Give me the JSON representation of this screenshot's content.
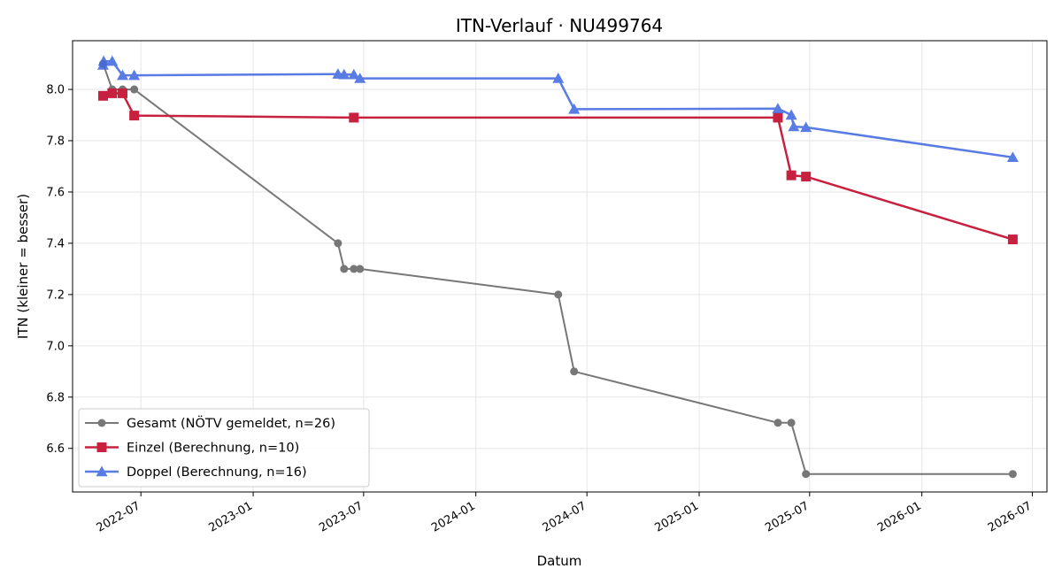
{
  "chart_data": {
    "type": "line",
    "title": "ITN-Verlauf · NU499764",
    "xlabel": "Datum",
    "ylabel": "ITN  (kleiner = besser)",
    "x_ticks": [
      "2022-07",
      "2023-01",
      "2023-07",
      "2024-01",
      "2024-07",
      "2025-01",
      "2025-07",
      "2026-01",
      "2026-07"
    ],
    "y_ticks": [
      "6.6",
      "6.8",
      "7.0",
      "7.2",
      "7.4",
      "7.6",
      "7.8",
      "8.0"
    ],
    "xlim": [
      "2022-03-11",
      "2026-07-25"
    ],
    "ylim": [
      6.43,
      8.19
    ],
    "grid": true,
    "legend_position": "lower-left",
    "series": [
      {
        "name": "Gesamt (NÖTV gemeldet, n=26)",
        "color": "#444444",
        "marker": "circle",
        "x": [
          "2022-04-30",
          "2022-05-15",
          "2022-06-01",
          "2022-06-20",
          "2023-05-20",
          "2023-05-30",
          "2023-06-15",
          "2023-06-25",
          "2024-05-15",
          "2024-06-10",
          "2025-05-10",
          "2025-06-01",
          "2025-06-25",
          "2026-05-30"
        ],
        "y": [
          8.1,
          8.0,
          8.0,
          8.0,
          7.4,
          7.3,
          7.3,
          7.3,
          7.2,
          6.9,
          6.7,
          6.7,
          6.5,
          6.5
        ]
      },
      {
        "name": "Einzel (Berechnung, n=10)",
        "color": "#c8203f",
        "marker": "square",
        "x": [
          "2022-04-30",
          "2022-05-15",
          "2022-06-01",
          "2022-06-20",
          "2023-06-15",
          "2025-05-10",
          "2025-06-01",
          "2025-06-25",
          "2026-05-30"
        ],
        "y": [
          7.975,
          7.985,
          7.985,
          7.898,
          7.89,
          7.89,
          7.665,
          7.66,
          7.415
        ]
      },
      {
        "name": "Doppel (Berechnung, n=16)",
        "color": "#4169e1",
        "marker": "triangle",
        "x": [
          "2022-04-30",
          "2022-05-01",
          "2022-05-15",
          "2022-06-01",
          "2022-06-20",
          "2023-05-20",
          "2023-05-30",
          "2023-06-15",
          "2023-06-25",
          "2024-05-15",
          "2024-06-10",
          "2025-05-10",
          "2025-06-01",
          "2025-06-05",
          "2025-06-25",
          "2026-05-30"
        ],
        "y": [
          8.095,
          8.11,
          8.11,
          8.055,
          8.055,
          8.06,
          8.058,
          8.058,
          8.043,
          8.043,
          7.923,
          7.925,
          7.9,
          7.855,
          7.852,
          7.735
        ]
      }
    ]
  }
}
